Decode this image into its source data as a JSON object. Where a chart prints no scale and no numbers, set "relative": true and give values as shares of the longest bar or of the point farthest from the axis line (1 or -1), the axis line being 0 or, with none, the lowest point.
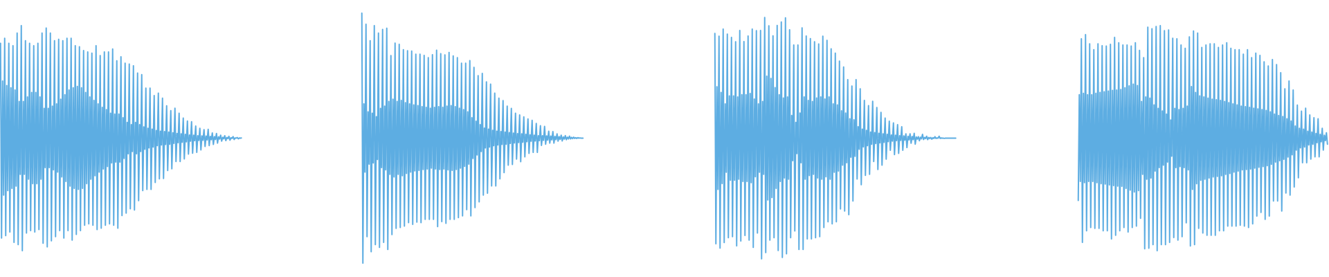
{
  "chart_data": [
    {
      "type": "line",
      "relative": true,
      "categories": [
        null,
        null,
        null,
        null,
        null,
        null,
        null,
        null,
        null,
        null,
        null,
        null,
        null,
        null,
        null,
        null,
        null,
        null,
        null,
        null,
        null,
        null,
        null,
        null,
        null,
        null,
        null,
        null,
        null,
        null,
        null,
        null,
        null,
        null,
        null,
        null,
        null,
        null,
        null,
        null,
        null,
        null,
        null,
        null,
        null,
        null,
        null,
        null,
        null,
        null,
        null,
        null,
        null,
        null,
        null,
        null,
        null,
        null,
        null,
        null,
        null,
        null,
        null,
        null,
        null,
        null,
        null,
        null,
        null,
        null,
        null,
        null,
        null,
        null,
        null,
        null,
        null,
        null,
        null,
        null,
        null,
        null,
        null,
        null,
        null,
        null,
        null,
        null,
        null,
        null,
        null,
        null,
        null,
        null,
        null,
        null,
        null,
        null,
        null,
        null,
        null,
        null,
        null,
        null,
        null,
        null,
        null,
        null,
        null,
        null,
        null,
        null,
        null,
        null,
        null,
        null,
        null,
        null,
        null,
        null,
        null,
        null,
        null,
        null,
        null,
        null,
        null,
        null,
        null,
        null,
        null,
        null,
        null,
        null,
        null,
        null,
        null,
        null,
        null,
        null,
        null,
        null,
        null,
        null,
        null,
        null,
        null,
        null,
        null,
        null,
        null,
        null,
        null,
        null,
        null,
        null,
        null,
        null,
        null,
        null,
        null,
        null,
        null,
        null,
        null,
        null,
        null,
        null,
        null,
        null,
        null,
        null,
        null,
        null,
        null,
        null,
        null,
        null,
        null,
        null,
        null,
        null,
        null,
        null,
        null,
        null,
        null,
        null,
        null,
        null,
        null,
        null,
        null,
        null,
        null,
        null,
        null,
        null,
        null,
        null,
        null,
        null,
        null,
        null,
        null,
        null,
        null,
        null,
        null,
        null,
        null,
        null,
        null,
        null,
        null,
        null,
        null,
        null,
        null,
        null,
        null,
        null,
        null,
        null,
        null,
        null,
        null,
        null,
        null,
        null,
        null,
        null,
        null
      ],
      "series": [
        {
          "color": "#5dade2",
          "values": [
            0.922,
            0.056,
            0.754,
            0.247,
            0.944,
            0.067,
            0.734,
            0.267,
            0.922,
            0.083,
            0.724,
            0.277,
            0.911,
            0.037,
            0.714,
            0.287,
            0.967,
            0.027,
            0.663,
            0.339,
            1.0,
            0.0,
            0.663,
            0.339,
            0.933,
            0.078,
            0.683,
            0.318,
            0.922,
            0.089,
            0.703,
            0.298,
            0.911,
            0.083,
            0.703,
            0.298,
            0.922,
            0.094,
            0.683,
            0.318,
            0.967,
            0.033,
            0.632,
            0.369,
            0.989,
            0.017,
            0.632,
            0.369,
            0.967,
            0.044,
            0.642,
            0.359,
            0.933,
            0.062,
            0.652,
            0.349,
            0.939,
            0.089,
            0.673,
            0.328,
            0.933,
            0.056,
            0.693,
            0.308,
            0.944,
            0.089,
            0.714,
            0.287,
            0.944,
            0.047,
            0.724,
            0.277,
            0.911,
            0.072,
            0.73,
            0.272,
            0.906,
            0.089,
            0.724,
            0.277,
            0.889,
            0.113,
            0.703,
            0.298,
            0.883,
            0.119,
            0.683,
            0.318,
            0.878,
            0.113,
            0.668,
            0.333,
            0.911,
            0.094,
            0.652,
            0.349,
            0.867,
            0.1,
            0.637,
            0.363,
            0.883,
            0.113,
            0.627,
            0.374,
            0.883,
            0.119,
            0.611,
            0.39,
            0.896,
            0.113,
            0.607,
            0.394,
            0.844,
            0.1,
            0.607,
            0.394,
            0.862,
            0.156,
            0.591,
            0.41,
            0.833,
            0.167,
            0.57,
            0.431,
            0.829,
            0.186,
            0.56,
            0.441,
            0.822,
            0.181,
            0.57,
            0.431,
            0.789,
            0.222,
            0.56,
            0.441,
            0.782,
            0.267,
            0.55,
            0.451,
            0.722,
            0.272,
            0.544,
            0.457,
            0.722,
            0.272,
            0.54,
            0.461,
            0.689,
            0.303,
            0.534,
            0.467,
            0.7,
            0.319,
            0.531,
            0.47,
            0.678,
            0.321,
            0.529,
            0.472,
            0.644,
            0.356,
            0.527,
            0.473,
            0.622,
            0.364,
            0.524,
            0.477,
            0.633,
            0.396,
            0.521,
            0.48,
            0.611,
            0.396,
            0.519,
            0.482,
            0.589,
            0.408,
            0.517,
            0.484,
            0.576,
            0.429,
            0.514,
            0.487,
            0.573,
            0.433,
            0.513,
            0.489,
            0.554,
            0.437,
            0.511,
            0.49,
            0.544,
            0.448,
            0.51,
            0.491,
            0.538,
            0.463,
            0.509,
            0.492,
            0.539,
            0.467,
            0.508,
            0.493,
            0.523,
            0.472,
            0.507,
            0.494,
            0.521,
            0.478,
            0.506,
            0.496,
            0.513,
            0.487,
            0.504,
            0.497,
            0.511,
            0.489,
            0.503,
            0.498,
            0.508,
            0.491,
            0.502,
            0.499,
            0.507,
            0.494,
            0.501,
            0.5,
            0.503,
            0.497,
            0.501,
            0.5,
            0.501
          ]
        }
      ]
    },
    {
      "type": "line",
      "relative": true,
      "categories": [
        null,
        null,
        null,
        null,
        null,
        null,
        null,
        null,
        null,
        null,
        null,
        null,
        null,
        null,
        null,
        null,
        null,
        null,
        null,
        null,
        null,
        null,
        null,
        null,
        null,
        null,
        null,
        null,
        null,
        null,
        null,
        null,
        null,
        null,
        null,
        null,
        null,
        null,
        null,
        null,
        null,
        null,
        null,
        null,
        null,
        null,
        null,
        null,
        null,
        null,
        null,
        null,
        null,
        null,
        null,
        null,
        null,
        null,
        null,
        null,
        null,
        null,
        null,
        null,
        null,
        null,
        null,
        null,
        null,
        null,
        null,
        null,
        null,
        null,
        null,
        null,
        null,
        null,
        null,
        null,
        null,
        null,
        null,
        null,
        null,
        null,
        null,
        null,
        null,
        null,
        null,
        null,
        null,
        null,
        null,
        null,
        null,
        null,
        null,
        null,
        null,
        null,
        null,
        null,
        null,
        null,
        null,
        null,
        null,
        null,
        null,
        null,
        null,
        null,
        null,
        null,
        null,
        null,
        null,
        null,
        null,
        null,
        null,
        null,
        null,
        null,
        null,
        null,
        null,
        null,
        null,
        null,
        null,
        null,
        null,
        null,
        null,
        null,
        null,
        null,
        null,
        null,
        null,
        null,
        null,
        null,
        null,
        null,
        null,
        null,
        null,
        null,
        null,
        null,
        null,
        null,
        null,
        null,
        null,
        null,
        null,
        null,
        null,
        null,
        null,
        null,
        null,
        null,
        null,
        null,
        null,
        null,
        null,
        null,
        null,
        null,
        null,
        null,
        null,
        null,
        null,
        null,
        null,
        null,
        null,
        null,
        null,
        null,
        null,
        null,
        null,
        null,
        null,
        null,
        null,
        null,
        null,
        null,
        null,
        null,
        null,
        null,
        null,
        null,
        null,
        null,
        null,
        null,
        null,
        null,
        null,
        null,
        null,
        null
      ],
      "series": [
        {
          "color": "#5dade2",
          "values": [
            1.0,
            0.0,
            0.637,
            0.364,
            0.956,
            0.106,
            0.605,
            0.396,
            0.89,
            0.046,
            0.6,
            0.401,
            0.95,
            0.074,
            0.586,
            0.415,
            0.92,
            0.063,
            0.619,
            0.382,
            0.935,
            0.083,
            0.628,
            0.373,
            0.94,
            0.055,
            0.647,
            0.355,
            0.83,
            0.114,
            0.656,
            0.345,
            0.88,
            0.139,
            0.647,
            0.355,
            0.875,
            0.143,
            0.651,
            0.35,
            0.854,
            0.148,
            0.642,
            0.359,
            0.85,
            0.162,
            0.637,
            0.364,
            0.848,
            0.155,
            0.633,
            0.369,
            0.836,
            0.164,
            0.63,
            0.371,
            0.836,
            0.162,
            0.626,
            0.375,
            0.831,
            0.175,
            0.623,
            0.377,
            0.822,
            0.175,
            0.62,
            0.38,
            0.834,
            0.175,
            0.623,
            0.377,
            0.852,
            0.146,
            0.626,
            0.375,
            0.838,
            0.166,
            0.623,
            0.377,
            0.833,
            0.159,
            0.628,
            0.373,
            0.843,
            0.175,
            0.63,
            0.371,
            0.829,
            0.175,
            0.626,
            0.375,
            0.822,
            0.182,
            0.62,
            0.38,
            0.8,
            0.189,
            0.614,
            0.387,
            0.8,
            0.214,
            0.605,
            0.396,
            0.81,
            0.189,
            0.582,
            0.419,
            0.783,
            0.222,
            0.568,
            0.433,
            0.75,
            0.245,
            0.554,
            0.447,
            0.759,
            0.272,
            0.54,
            0.461,
            0.725,
            0.28,
            0.536,
            0.465,
            0.716,
            0.309,
            0.531,
            0.47,
            0.68,
            0.309,
            0.528,
            0.473,
            0.66,
            0.337,
            0.526,
            0.475,
            0.65,
            0.362,
            0.524,
            0.476,
            0.628,
            0.392,
            0.522,
            0.479,
            0.619,
            0.395,
            0.52,
            0.481,
            0.6,
            0.416,
            0.518,
            0.483,
            0.593,
            0.406,
            0.517,
            0.484,
            0.585,
            0.425,
            0.515,
            0.486,
            0.577,
            0.439,
            0.513,
            0.488,
            0.571,
            0.443,
            0.512,
            0.489,
            0.559,
            0.443,
            0.51,
            0.49,
            0.55,
            0.471,
            0.51,
            0.491,
            0.547,
            0.476,
            0.509,
            0.492,
            0.528,
            0.48,
            0.508,
            0.493,
            0.526,
            0.48,
            0.507,
            0.494,
            0.517,
            0.488,
            0.506,
            0.495,
            0.512,
            0.489,
            0.505,
            0.496,
            0.51,
            0.494,
            0.504,
            0.497,
            0.508,
            0.497,
            0.503,
            0.498,
            0.504,
            0.499,
            0.502,
            0.499,
            0.502,
            0.5,
            0.501,
            0.5,
            0.5,
            0.5
          ]
        }
      ]
    },
    {
      "type": "line",
      "relative": true,
      "categories": [
        null,
        null,
        null,
        null,
        null,
        null,
        null,
        null,
        null,
        null,
        null,
        null,
        null,
        null,
        null,
        null,
        null,
        null,
        null,
        null,
        null,
        null,
        null,
        null,
        null,
        null,
        null,
        null,
        null,
        null,
        null,
        null,
        null,
        null,
        null,
        null,
        null,
        null,
        null,
        null,
        null,
        null,
        null,
        null,
        null,
        null,
        null,
        null,
        null,
        null,
        null,
        null,
        null,
        null,
        null,
        null,
        null,
        null,
        null,
        null,
        null,
        null,
        null,
        null,
        null,
        null,
        null,
        null,
        null,
        null,
        null,
        null,
        null,
        null,
        null,
        null,
        null,
        null,
        null,
        null,
        null,
        null,
        null,
        null,
        null,
        null,
        null,
        null,
        null,
        null,
        null,
        null,
        null,
        null,
        null,
        null,
        null,
        null,
        null,
        null,
        null,
        null,
        null,
        null,
        null,
        null,
        null,
        null,
        null,
        null,
        null,
        null,
        null,
        null,
        null,
        null,
        null,
        null,
        null,
        null,
        null,
        null,
        null,
        null,
        null,
        null,
        null,
        null,
        null,
        null,
        null,
        null,
        null,
        null,
        null,
        null,
        null,
        null,
        null,
        null,
        null,
        null,
        null,
        null,
        null,
        null,
        null,
        null,
        null,
        null,
        null,
        null,
        null,
        null,
        null,
        null,
        null,
        null,
        null,
        null,
        null,
        null,
        null,
        null,
        null,
        null,
        null,
        null,
        null,
        null,
        null,
        null,
        null,
        null,
        null,
        null,
        null,
        null,
        null,
        null,
        null,
        null,
        null,
        null,
        null,
        null,
        null,
        null,
        null,
        null,
        null,
        null,
        null,
        null,
        null,
        null,
        null,
        null,
        null,
        null,
        null,
        null,
        null,
        null,
        null,
        null,
        null,
        null,
        null,
        null,
        null,
        null,
        null,
        null,
        null,
        null,
        null,
        null,
        null,
        null,
        null,
        null,
        null,
        null,
        null,
        null,
        null,
        null,
        null,
        null,
        null,
        null,
        null
      ],
      "series": [
        {
          "color": "#5dade2",
          "values": [
            0.934,
            0.063,
            0.713,
            0.288,
            0.922,
            0.045,
            0.689,
            0.312,
            0.952,
            0.068,
            0.642,
            0.359,
            0.931,
            0.088,
            0.675,
            0.326,
            0.917,
            0.092,
            0.675,
            0.326,
            0.899,
            0.054,
            0.671,
            0.33,
            0.946,
            0.074,
            0.68,
            0.321,
            0.9,
            0.097,
            0.68,
            0.321,
            0.923,
            0.078,
            0.685,
            0.316,
            0.952,
            0.048,
            0.662,
            0.34,
            0.945,
            0.107,
            0.642,
            0.359,
            0.946,
            0.0,
            0.652,
            0.35,
            1.0,
            0.026,
            0.757,
            0.244,
            0.965,
            0.078,
            0.747,
            0.254,
            0.924,
            0.088,
            0.709,
            0.292,
            0.967,
            0.035,
            0.68,
            0.321,
            0.981,
            0.006,
            0.666,
            0.335,
            0.998,
            0.021,
            0.671,
            0.33,
            0.949,
            0.088,
            0.594,
            0.407,
            0.886,
            0.116,
            0.565,
            0.436,
            0.886,
            0.039,
            0.604,
            0.398,
            0.957,
            0.039,
            0.671,
            0.33,
            0.923,
            0.083,
            0.656,
            0.345,
            0.912,
            0.083,
            0.652,
            0.35,
            0.899,
            0.088,
            0.666,
            0.335,
            0.89,
            0.092,
            0.671,
            0.33,
            0.922,
            0.13,
            0.662,
            0.34,
            0.905,
            0.154,
            0.671,
            0.33,
            0.87,
            0.145,
            0.642,
            0.359,
            0.852,
            0.154,
            0.638,
            0.364,
            0.819,
            0.207,
            0.613,
            0.388,
            0.795,
            0.198,
            0.604,
            0.398,
            0.742,
            0.183,
            0.58,
            0.421,
            0.716,
            0.24,
            0.576,
            0.425,
            0.742,
            0.331,
            0.547,
            0.454,
            0.704,
            0.307,
            0.537,
            0.464,
            0.656,
            0.346,
            0.532,
            0.469,
            0.635,
            0.35,
            0.525,
            0.475,
            0.653,
            0.403,
            0.523,
            0.478,
            0.627,
            0.37,
            0.52,
            0.481,
            0.607,
            0.388,
            0.518,
            0.483,
            0.583,
            0.413,
            0.516,
            0.486,
            0.57,
            0.45,
            0.513,
            0.488,
            0.563,
            0.432,
            0.512,
            0.49,
            0.556,
            0.437,
            0.51,
            0.491,
            0.547,
            0.45,
            0.509,
            0.492,
            0.518,
            0.461,
            0.508,
            0.493,
            0.518,
            0.479,
            0.507,
            0.494,
            0.52,
            0.475,
            0.505,
            0.496,
            0.506,
            0.489,
            0.504,
            0.497,
            0.516,
            0.494,
            0.503,
            0.498,
            0.508,
            0.494,
            0.503,
            0.498,
            0.503,
            0.496,
            0.502,
            0.499,
            0.506,
            0.499,
            0.501,
            0.5,
            0.508,
            0.499,
            0.501,
            0.5,
            0.5,
            0.499,
            0.5,
            0.5,
            0.5,
            0.5,
            0.5,
            0.5,
            0.5,
            0.5,
            0.5,
            0.5,
            0.5
          ]
        }
      ]
    },
    {
      "type": "line",
      "relative": true,
      "categories": [
        null,
        null,
        null,
        null,
        null,
        null,
        null,
        null,
        null,
        null,
        null,
        null,
        null,
        null,
        null,
        null,
        null,
        null,
        null,
        null,
        null,
        null,
        null,
        null,
        null,
        null,
        null,
        null,
        null,
        null,
        null,
        null,
        null,
        null,
        null,
        null,
        null,
        null,
        null,
        null,
        null,
        null,
        null,
        null,
        null,
        null,
        null,
        null,
        null,
        null,
        null,
        null,
        null,
        null,
        null,
        null,
        null,
        null,
        null,
        null,
        null,
        null,
        null,
        null,
        null,
        null,
        null,
        null,
        null,
        null,
        null,
        null,
        null,
        null,
        null,
        null,
        null,
        null,
        null,
        null,
        null,
        null,
        null,
        null,
        null,
        null,
        null,
        null,
        null,
        null,
        null,
        null,
        null,
        null,
        null,
        null,
        null,
        null,
        null,
        null,
        null,
        null,
        null,
        null,
        null,
        null,
        null,
        null,
        null,
        null,
        null,
        null,
        null,
        null,
        null,
        null,
        null,
        null,
        null,
        null,
        null,
        null,
        null,
        null,
        null,
        null,
        null,
        null,
        null,
        null,
        null,
        null,
        null,
        null,
        null,
        null,
        null,
        null,
        null,
        null,
        null,
        null,
        null,
        null,
        null,
        null,
        null,
        null,
        null,
        null,
        null,
        null,
        null,
        null,
        null,
        null,
        null,
        null,
        null,
        null,
        null,
        null,
        null,
        null,
        null,
        null,
        null,
        null,
        null,
        null,
        null,
        null,
        null,
        null,
        null,
        null,
        null,
        null,
        null,
        null,
        null,
        null,
        null,
        null,
        null,
        null,
        null,
        null,
        null,
        null,
        null,
        null,
        null,
        null,
        null,
        null,
        null,
        null,
        null,
        null,
        null,
        null,
        null,
        null,
        null,
        null,
        null,
        null,
        null,
        null,
        null,
        null,
        null,
        null,
        null,
        null,
        null,
        null,
        null,
        null,
        null,
        null,
        null,
        null,
        null,
        null,
        null,
        null,
        null,
        null,
        null,
        null,
        null,
        null,
        null,
        null,
        null,
        null,
        null,
        null,
        null
      ],
      "series": [
        {
          "color": "#5dade2",
          "values": [
            0.223,
            0.693,
            0.308,
            0.942,
            0.037,
            0.699,
            0.302,
            0.96,
            0.088,
            0.693,
            0.308,
            0.919,
            0.103,
            0.693,
            0.308,
            0.893,
            0.099,
            0.699,
            0.302,
            0.919,
            0.099,
            0.703,
            0.298,
            0.911,
            0.088,
            0.706,
            0.296,
            0.909,
            0.088,
            0.709,
            0.292,
            0.917,
            0.052,
            0.712,
            0.289,
            0.948,
            0.068,
            0.714,
            0.287,
            0.924,
            0.088,
            0.716,
            0.286,
            0.914,
            0.103,
            0.724,
            0.277,
            0.914,
            0.083,
            0.732,
            0.269,
            0.909,
            0.103,
            0.74,
            0.261,
            0.924,
            0.109,
            0.734,
            0.267,
            0.89,
            0.144,
            0.663,
            0.339,
            0.858,
            0.008,
            0.683,
            0.318,
            0.993,
            0.011,
            0.678,
            0.323,
            0.986,
            0.027,
            0.648,
            0.354,
            0.996,
            0.0,
            0.632,
            0.369,
            1.0,
            0.027,
            0.621,
            0.38,
            0.978,
            0.027,
            0.607,
            0.394,
            0.981,
            0.037,
            0.581,
            0.42,
            0.944,
            0.058,
            0.632,
            0.369,
            0.942,
            0.047,
            0.627,
            0.374,
            0.914,
            0.062,
            0.632,
            0.369,
            0.899,
            0.124,
            0.642,
            0.359,
            0.95,
            0.021,
            0.729,
            0.272,
            0.976,
            0.027,
            0.703,
            0.298,
            0.967,
            0.099,
            0.688,
            0.313,
            0.903,
            0.078,
            0.683,
            0.318,
            0.914,
            0.068,
            0.678,
            0.323,
            0.919,
            0.068,
            0.673,
            0.328,
            0.919,
            0.068,
            0.671,
            0.33,
            0.903,
            0.088,
            0.668,
            0.333,
            0.914,
            0.088,
            0.663,
            0.339,
            0.924,
            0.109,
            0.658,
            0.343,
            0.899,
            0.109,
            0.652,
            0.349,
            0.893,
            0.109,
            0.648,
            0.354,
            0.893,
            0.113,
            0.642,
            0.359,
            0.873,
            0.109,
            0.64,
            0.361,
            0.893,
            0.103,
            0.637,
            0.363,
            0.858,
            0.119,
            0.633,
            0.367,
            0.878,
            0.154,
            0.63,
            0.371,
            0.868,
            0.17,
            0.627,
            0.374,
            0.839,
            0.139,
            0.623,
            0.378,
            0.821,
            0.154,
            0.617,
            0.384,
            0.849,
            0.221,
            0.607,
            0.394,
            0.827,
            0.221,
            0.601,
            0.4,
            0.791,
            0.176,
            0.596,
            0.406,
            0.719,
            0.256,
            0.586,
            0.416,
            0.754,
            0.247,
            0.576,
            0.426,
            0.714,
            0.283,
            0.554,
            0.447,
            0.647,
            0.324,
            0.544,
            0.457,
            0.62,
            0.391,
            0.54,
            0.461,
            0.633,
            0.391,
            0.531,
            0.47,
            0.603,
            0.407,
            0.527,
            0.473,
            0.591,
            0.417,
            0.521,
            0.48,
            0.586,
            0.417,
            0.517,
            0.484,
            0.544,
            0.447,
            0.513,
            0.489,
            0.524,
            0.473
          ]
        }
      ]
    }
  ]
}
